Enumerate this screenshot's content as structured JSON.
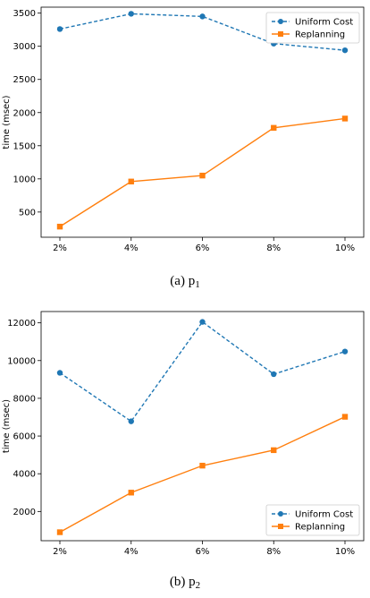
{
  "chart_data": [
    {
      "type": "line",
      "caption": "(a)",
      "caption_var": "p",
      "caption_sub": "1",
      "ylabel": "time (msec)",
      "categories": [
        "2%",
        "4%",
        "6%",
        "8%",
        "10%"
      ],
      "ylim": [
        120,
        3590
      ],
      "yticks": [
        500,
        1000,
        1500,
        2000,
        2500,
        3000,
        3500
      ],
      "legend_position": "top-right",
      "grid": false,
      "series": [
        {
          "name": "Uniform Cost",
          "color": "#1f77b4",
          "dashed": true,
          "marker": "circle",
          "values": [
            3260,
            3490,
            3450,
            3040,
            2940
          ]
        },
        {
          "name": "Replanning",
          "color": "#ff7f0e",
          "dashed": false,
          "marker": "square",
          "values": [
            280,
            960,
            1050,
            1770,
            1910
          ]
        }
      ]
    },
    {
      "type": "line",
      "caption": "(b)",
      "caption_var": "p",
      "caption_sub": "2",
      "ylabel": "time (msec)",
      "categories": [
        "2%",
        "4%",
        "6%",
        "8%",
        "10%"
      ],
      "ylim": [
        450,
        12600
      ],
      "yticks": [
        2000,
        4000,
        6000,
        8000,
        10000,
        12000
      ],
      "legend_position": "bottom-right",
      "grid": false,
      "series": [
        {
          "name": "Uniform Cost",
          "color": "#1f77b4",
          "dashed": true,
          "marker": "circle",
          "values": [
            9350,
            6780,
            12050,
            9280,
            10480
          ]
        },
        {
          "name": "Replanning",
          "color": "#ff7f0e",
          "dashed": false,
          "marker": "square",
          "values": [
            900,
            3000,
            4430,
            5250,
            7020
          ]
        }
      ]
    }
  ]
}
